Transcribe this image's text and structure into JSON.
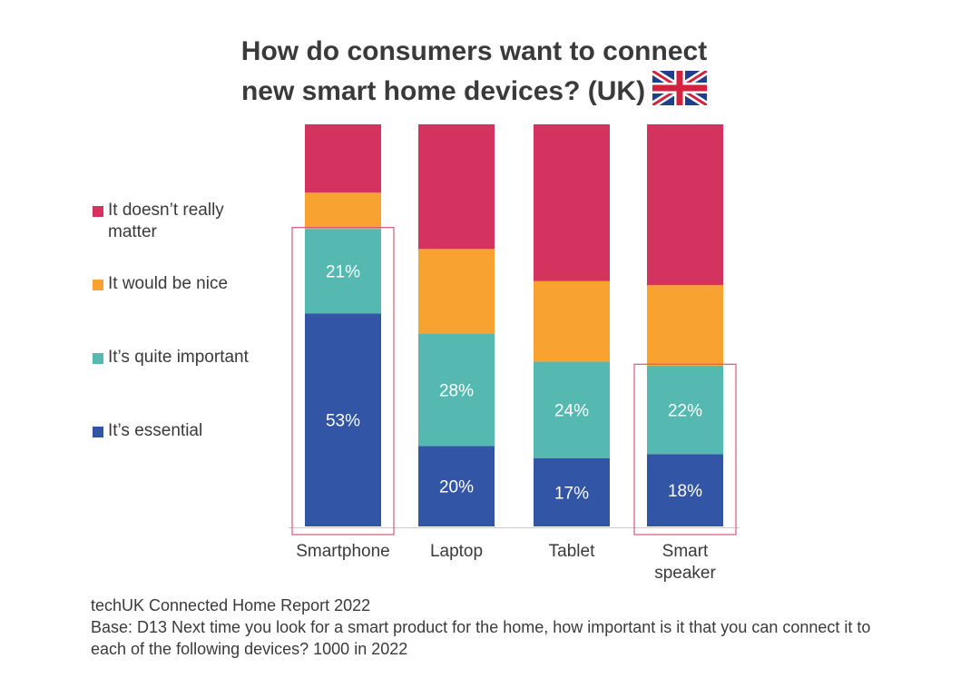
{
  "title": {
    "line1": "How do consumers want to connect",
    "line2": "new smart home devices? (UK)"
  },
  "flag_icon": "uk-flag-icon",
  "colors": {
    "doesnt_matter": "#d5335f",
    "would_be_nice": "#f8a232",
    "quite_important": "#55b9b1",
    "essential": "#3355a6",
    "highlight": "#d9567a",
    "baseline": "#d9c6cb"
  },
  "legend": [
    {
      "label": "It doesn’t really matter",
      "color": "#d5335f"
    },
    {
      "label": "It would be nice",
      "color": "#f8a232"
    },
    {
      "label": "It’s quite important",
      "color": "#55b9b1"
    },
    {
      "label": "It’s essential",
      "color": "#3355a6"
    }
  ],
  "chart_data": {
    "type": "bar",
    "stacked": true,
    "normalized_to": 100,
    "categories": [
      "Smartphone",
      "Laptop",
      "Tablet",
      "Smart speaker"
    ],
    "series": [
      {
        "name": "It’s essential",
        "values": [
          53,
          20,
          17,
          18
        ],
        "labels": [
          "53%",
          "20%",
          "17%",
          "18%"
        ],
        "color": "#3355a6"
      },
      {
        "name": "It’s quite important",
        "values": [
          21,
          28,
          24,
          22
        ],
        "labels": [
          "21%",
          "28%",
          "24%",
          "22%"
        ],
        "color": "#55b9b1"
      },
      {
        "name": "It would be nice",
        "values": [
          9,
          21,
          20,
          20
        ],
        "color": "#f8a232"
      },
      {
        "name": "It doesn’t really matter",
        "values": [
          17,
          31,
          39,
          40
        ],
        "color": "#d5335f"
      }
    ],
    "highlighted_categories": [
      "Smartphone",
      "Smart speaker"
    ],
    "highlighted_from_series": [
      1,
      1
    ],
    "legend_position": "left",
    "grid": false,
    "ylim": [
      0,
      100
    ]
  },
  "source": {
    "line1": "techUK Connected Home Report 2022",
    "line2": "Base: D13 Next time you look for a smart product for the home, how important is it that you can connect it to each of the following devices? 1000 in 2022"
  }
}
